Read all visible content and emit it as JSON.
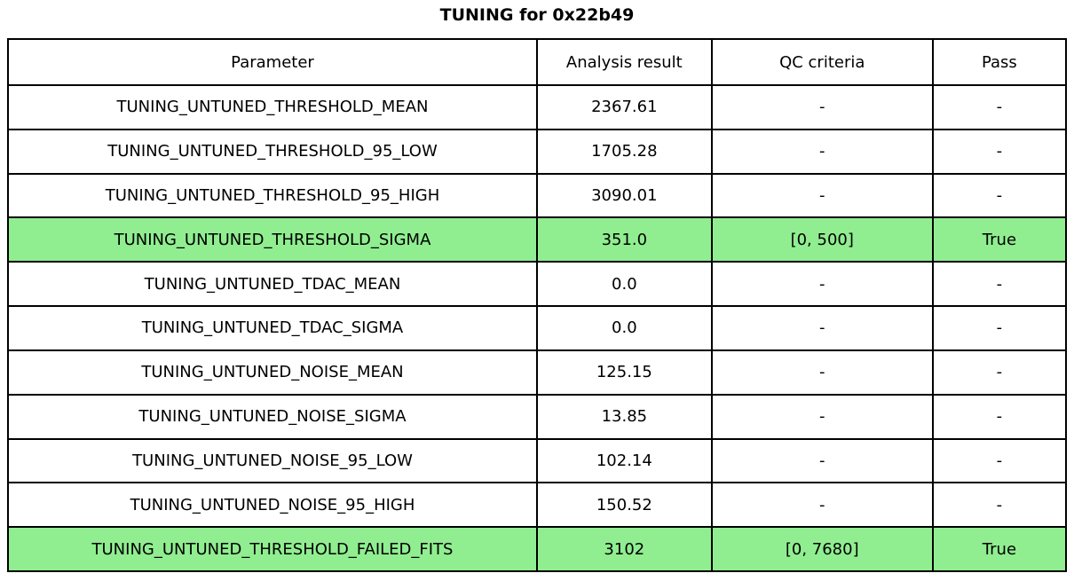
{
  "chart_data": {
    "type": "table",
    "title": "TUNING for 0x22b49",
    "columns": [
      "Parameter",
      "Analysis result",
      "QC criteria",
      "Pass"
    ],
    "rows": [
      {
        "parameter": "TUNING_UNTUNED_THRESHOLD_MEAN",
        "analysis_result": "2367.61",
        "qc_criteria": "-",
        "pass": "-",
        "highlighted": false
      },
      {
        "parameter": "TUNING_UNTUNED_THRESHOLD_95_LOW",
        "analysis_result": "1705.28",
        "qc_criteria": "-",
        "pass": "-",
        "highlighted": false
      },
      {
        "parameter": "TUNING_UNTUNED_THRESHOLD_95_HIGH",
        "analysis_result": "3090.01",
        "qc_criteria": "-",
        "pass": "-",
        "highlighted": false
      },
      {
        "parameter": "TUNING_UNTUNED_THRESHOLD_SIGMA",
        "analysis_result": "351.0",
        "qc_criteria": "[0, 500]",
        "pass": "True",
        "highlighted": true
      },
      {
        "parameter": "TUNING_UNTUNED_TDAC_MEAN",
        "analysis_result": "0.0",
        "qc_criteria": "-",
        "pass": "-",
        "highlighted": false
      },
      {
        "parameter": "TUNING_UNTUNED_TDAC_SIGMA",
        "analysis_result": "0.0",
        "qc_criteria": "-",
        "pass": "-",
        "highlighted": false
      },
      {
        "parameter": "TUNING_UNTUNED_NOISE_MEAN",
        "analysis_result": "125.15",
        "qc_criteria": "-",
        "pass": "-",
        "highlighted": false
      },
      {
        "parameter": "TUNING_UNTUNED_NOISE_SIGMA",
        "analysis_result": "13.85",
        "qc_criteria": "-",
        "pass": "-",
        "highlighted": false
      },
      {
        "parameter": "TUNING_UNTUNED_NOISE_95_LOW",
        "analysis_result": "102.14",
        "qc_criteria": "-",
        "pass": "-",
        "highlighted": false
      },
      {
        "parameter": "TUNING_UNTUNED_NOISE_95_HIGH",
        "analysis_result": "150.52",
        "qc_criteria": "-",
        "pass": "-",
        "highlighted": false
      },
      {
        "parameter": "TUNING_UNTUNED_THRESHOLD_FAILED_FITS",
        "analysis_result": "3102",
        "qc_criteria": "[0, 7680]",
        "pass": "True",
        "highlighted": true
      }
    ],
    "colors": {
      "highlight_row": "#90ee90",
      "border": "#000000",
      "background": "#ffffff",
      "text": "#000000"
    },
    "layout": {
      "legend": "off",
      "grid": "table-borders",
      "title_position": "top-center"
    }
  }
}
